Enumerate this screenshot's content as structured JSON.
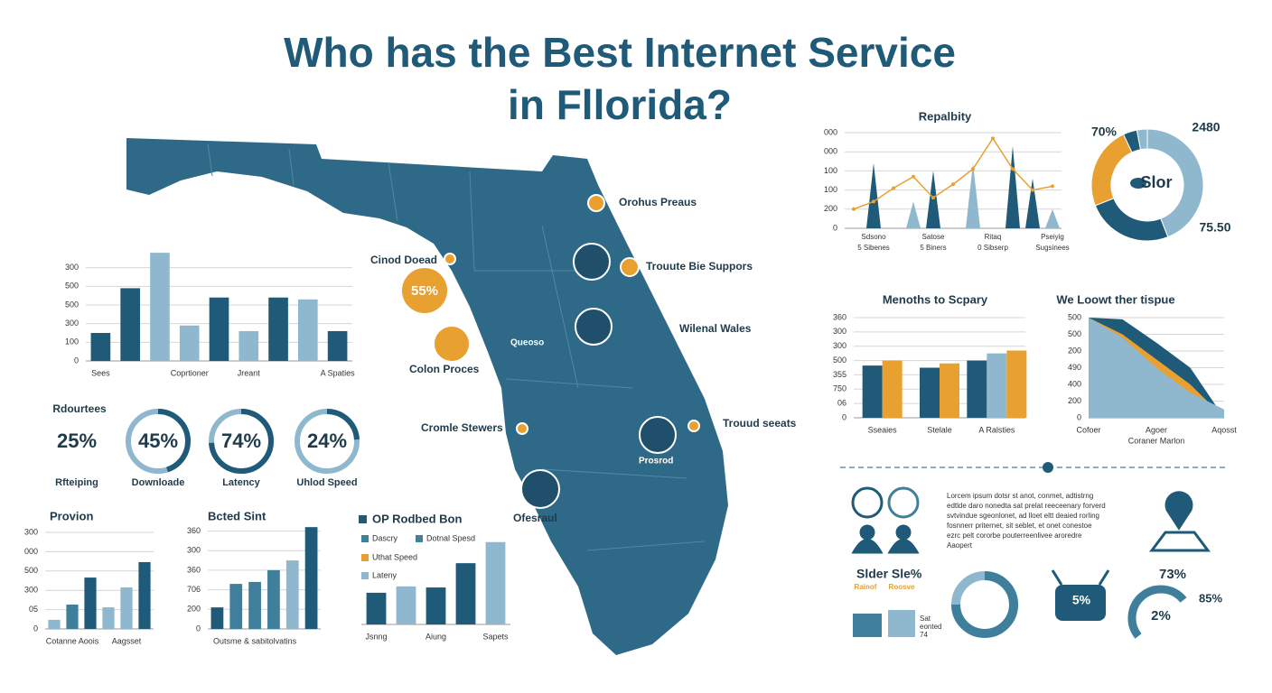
{
  "title": [
    "Who has the Best Internet Service",
    "in Fllorida?"
  ],
  "map": {
    "badge": "55%",
    "labels": [
      "Orohus Preaus",
      "Cinod Doead",
      "Trouute Bie Suppors",
      "Wilenal Wales",
      "Colon Proces",
      "Queoso",
      "Cromle Stewers",
      "Trouud seeats",
      "Prosrod",
      "Ofesraul"
    ]
  },
  "chart_data": [
    {
      "type": "bar",
      "categories": [
        "Sees",
        null,
        null,
        "Coprtioner",
        null,
        "Jreant",
        null,
        null,
        "A Spaties"
      ],
      "values": [
        1.5,
        3.9,
        5.8,
        1.9,
        3.4,
        1.6,
        3.4,
        3.3,
        1.6
      ],
      "colors": [
        "#1f5a78",
        "#1f5a78",
        "#8fb8cf",
        "#8fb8cf",
        "#1f5a78",
        "#8fb8cf",
        "#1f5a78",
        "#8fb8cf",
        "#1f5a78"
      ],
      "ylim": [
        0,
        6
      ],
      "yticks": [
        0,
        {
          "value": 1,
          "label": "100"
        },
        {
          "value": 2,
          "label": "300"
        },
        {
          "value": 3,
          "label": "500"
        },
        {
          "value": 4,
          "label": "500"
        },
        {
          "value": 5,
          "label": "300"
        }
      ],
      "grid": true
    },
    {
      "type": "ring",
      "title": "Rdourtees",
      "categories": [
        "Rfteiping",
        "Downloade",
        "Latency",
        "Uhlod Speed"
      ],
      "values": [
        25,
        45,
        74,
        24
      ],
      "value_labels": [
        "25%",
        "45%",
        "74%",
        "24%"
      ],
      "rings": [
        false,
        true,
        true,
        true
      ],
      "ylim": [
        0,
        100
      ],
      "color": "#1f5a78",
      "track_color": "#8fb8cf"
    },
    {
      "type": "bar",
      "title": "Provion",
      "categories": [
        null,
        "Cotanne Aoois",
        null,
        null,
        "Aagsset",
        null
      ],
      "values": [
        0.47,
        1.26,
        2.66,
        1.12,
        2.15,
        3.46
      ],
      "colors": [
        "#8fb8cf",
        "#3f7f9c",
        "#1f5a78",
        "#8fb8cf",
        "#8fb8cf",
        "#1f5a78"
      ],
      "ylim": [
        0,
        5
      ],
      "yticks": [
        0,
        {
          "value": 1,
          "label": "05"
        },
        {
          "value": 2,
          "label": "300"
        },
        {
          "value": 3,
          "label": "500"
        },
        {
          "value": 4,
          "label": "000"
        },
        {
          "value": 5,
          "label": "300"
        }
      ],
      "grid": true
    },
    {
      "type": "bar",
      "title": "Bcted Sint",
      "categories": [
        null,
        null,
        "Outsme & sabitolvatins",
        null,
        null,
        null
      ],
      "values": [
        1.1,
        2.3,
        2.4,
        3.0,
        3.5,
        5.2
      ],
      "colors": [
        "#1f5a78",
        "#3f7f9c",
        "#3f7f9c",
        "#3f7f9c",
        "#8fb8cf",
        "#1f5a78"
      ],
      "ylim": [
        0,
        5.3
      ],
      "yticks": [
        0,
        {
          "value": 1,
          "label": "200"
        },
        {
          "value": 2,
          "label": "706"
        },
        {
          "value": 3,
          "label": "360"
        },
        {
          "value": 4,
          "label": "300"
        },
        {
          "value": 5,
          "label": "360"
        }
      ],
      "grid": true
    },
    {
      "type": "bar",
      "title": "OP Rodbed Bon",
      "categories": [
        "Jsnng",
        null,
        "Aiung",
        null,
        "Sapets"
      ],
      "values": [
        1.5,
        1.8,
        1.75,
        2.9,
        3.9
      ],
      "colors": [
        "#1f5a78",
        "#8fb8cf",
        "#1f5a78",
        "#1f5a78",
        "#8fb8cf"
      ],
      "ylim": [
        0,
        5
      ],
      "legend": [
        {
          "name": "Dascry",
          "color": "#3f7f9c"
        },
        {
          "name": "Dotnal Spesd",
          "color": "#3f7f9c"
        },
        {
          "name": "Uthat Speed",
          "color": "#e8a030"
        },
        {
          "name": "Lateny",
          "color": "#8fb8cf"
        }
      ]
    },
    {
      "type": "line",
      "title": "Repalbity",
      "categories": [
        null,
        [
          "Sdsono",
          "5 Sibenes"
        ],
        null,
        null,
        [
          "Satose",
          "5 Biners"
        ],
        null,
        null,
        [
          "Ritaq",
          "0 Sibserp"
        ],
        null,
        null,
        [
          "Pseiyig",
          "Sugsinees"
        ]
      ],
      "series": [
        {
          "style": "spike",
          "color": "#1f5a78",
          "values": [
            null,
            3.4,
            null,
            null,
            3.0,
            null,
            null,
            null,
            4.3,
            2.6,
            null
          ]
        },
        {
          "style": "spike",
          "color": "#8fb8cf",
          "values": [
            null,
            null,
            null,
            1.4,
            null,
            null,
            3.4,
            null,
            null,
            null,
            1.0
          ]
        },
        {
          "style": "line",
          "color": "#e8a030",
          "values": [
            1.0,
            1.4,
            2.1,
            2.7,
            1.6,
            2.3,
            3.1,
            4.7,
            3.1,
            2.0,
            2.2
          ]
        }
      ],
      "ylim": [
        0,
        5
      ],
      "yticks": [
        0,
        {
          "value": 1,
          "label": "200"
        },
        {
          "value": 2,
          "label": "100"
        },
        {
          "value": 3,
          "label": "100"
        },
        {
          "value": 4,
          "label": "000"
        },
        {
          "value": 5,
          "label": "000"
        }
      ],
      "grid": true
    },
    {
      "type": "pie",
      "values": [
        44,
        25,
        24,
        4,
        3
      ],
      "colors": [
        "#8fb8cf",
        "#1f5a78",
        "#e8a030",
        "#1f5a78",
        "#8fb8cf"
      ],
      "center_label": "Slor",
      "annotations": [
        "70%",
        "2480",
        "75.50"
      ]
    },
    {
      "type": "grouped_bar",
      "title": "Menoths to Scpary",
      "categories": [
        "Sseaies",
        "Stelale",
        "A Ralsties"
      ],
      "series": [
        {
          "color": "#1f5a78",
          "values": [
            3.65,
            3.5,
            4.0
          ]
        },
        {
          "color": "#8fb8cf",
          "values": [
            null,
            null,
            4.5
          ]
        },
        {
          "color": "#e8a030",
          "values": [
            4.0,
            3.8,
            4.7
          ]
        }
      ],
      "ylim": [
        0,
        7
      ],
      "yticks": [
        0,
        {
          "value": 1,
          "label": "06"
        },
        {
          "value": 2,
          "label": "750"
        },
        {
          "value": 3,
          "label": "355"
        },
        {
          "value": 4,
          "label": "500"
        },
        {
          "value": 5,
          "label": "300"
        },
        {
          "value": 6,
          "label": "300"
        },
        {
          "value": 7,
          "label": "360"
        }
      ],
      "grid": true
    },
    {
      "type": "area",
      "title": "We Loowt ther tispue",
      "xlabel": "Coraner Marlon",
      "categories": [
        "Cofoer",
        null,
        "Agoer",
        null,
        "Aqosst"
      ],
      "series": [
        {
          "color": "#1f5a78",
          "values": [
            6,
            5.9,
            4.5,
            3.0,
            0
          ]
        },
        {
          "color": "#e8a030",
          "values": [
            6,
            5.0,
            3.5,
            2.0,
            0
          ]
        },
        {
          "color": "#8fb8cf",
          "values": [
            6,
            4.8,
            3.0,
            1.5,
            0.5
          ]
        }
      ],
      "ylim": [
        0,
        6
      ],
      "yticks": [
        0,
        {
          "value": 1,
          "label": "200"
        },
        {
          "value": 2,
          "label": "400"
        },
        {
          "value": 3,
          "label": "490"
        },
        {
          "value": 4,
          "label": "200"
        },
        {
          "value": 5,
          "label": "500"
        },
        {
          "value": 6,
          "label": "500"
        }
      ],
      "grid": true
    }
  ],
  "panel": {
    "paragraph": [
      "Lorcem ipsum dotsr st anot, conmet, adtistrng",
      "edtlde daro nonedta sat prelat reeceenary forverd",
      "svtvindue sgeonlonet, ad lloet eltt deaied rorling",
      "fosnnerr priternet, sit seblet, et onet conestoe",
      "ezrc pelt cororbe pouterreenlivee aroredre",
      "Aaopert"
    ],
    "heading": "Slder Sle%",
    "tags": [
      "Rainof",
      "Roosve"
    ],
    "note": [
      "Sat",
      "eonted",
      "74"
    ],
    "stats": [
      "5%",
      "73%",
      "85%",
      "2%"
    ]
  }
}
